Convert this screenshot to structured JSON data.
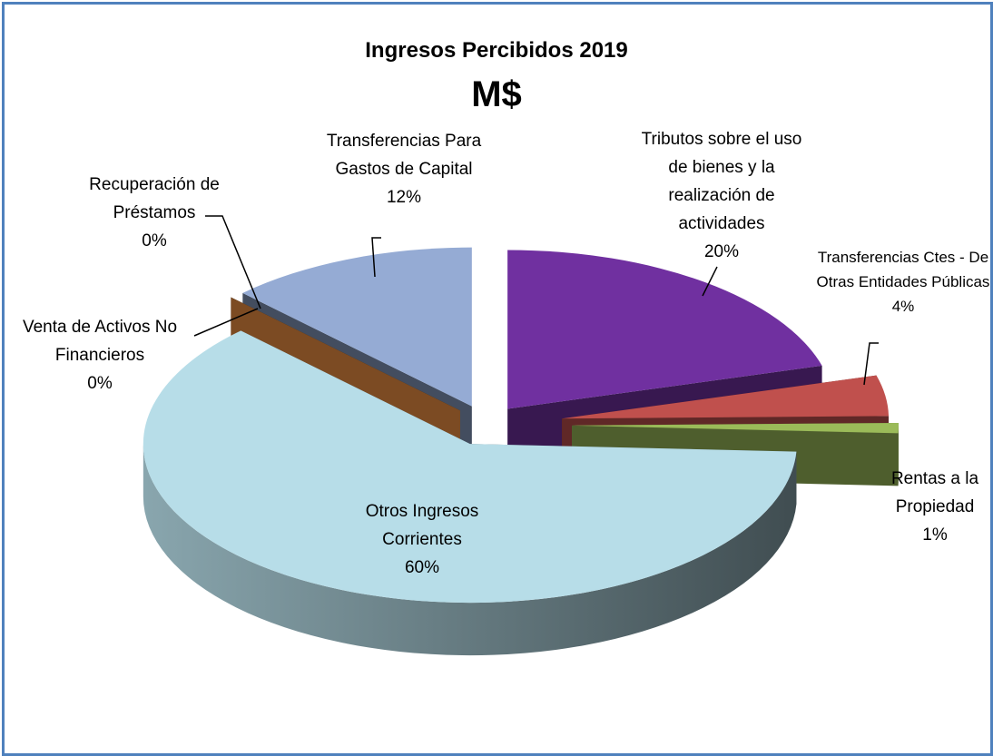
{
  "chart_data": {
    "type": "pie",
    "title": "Ingresos Percibidos 2019",
    "subtitle": "M$",
    "categories": [
      "Tributos sobre el uso de bienes y la realización de actividades",
      "Transferencias Ctes - De Otras Entidades Públicas",
      "Rentas a la Propiedad",
      "Otros Ingresos Corrientes",
      "Venta de Activos No Financieros",
      "Recuperación de Préstamos",
      "Transferencias Para Gastos de Capital"
    ],
    "values": [
      20,
      4,
      1,
      60,
      0,
      0,
      12
    ],
    "value_labels": [
      "20%",
      "4%",
      "1%",
      "60%",
      "0%",
      "0%",
      "12%"
    ],
    "colors": [
      "#7030a0",
      "#c0504d",
      "#9bbb59",
      "#b7dde8",
      "#1f4552",
      "#f79646",
      "#95abd4"
    ]
  }
}
